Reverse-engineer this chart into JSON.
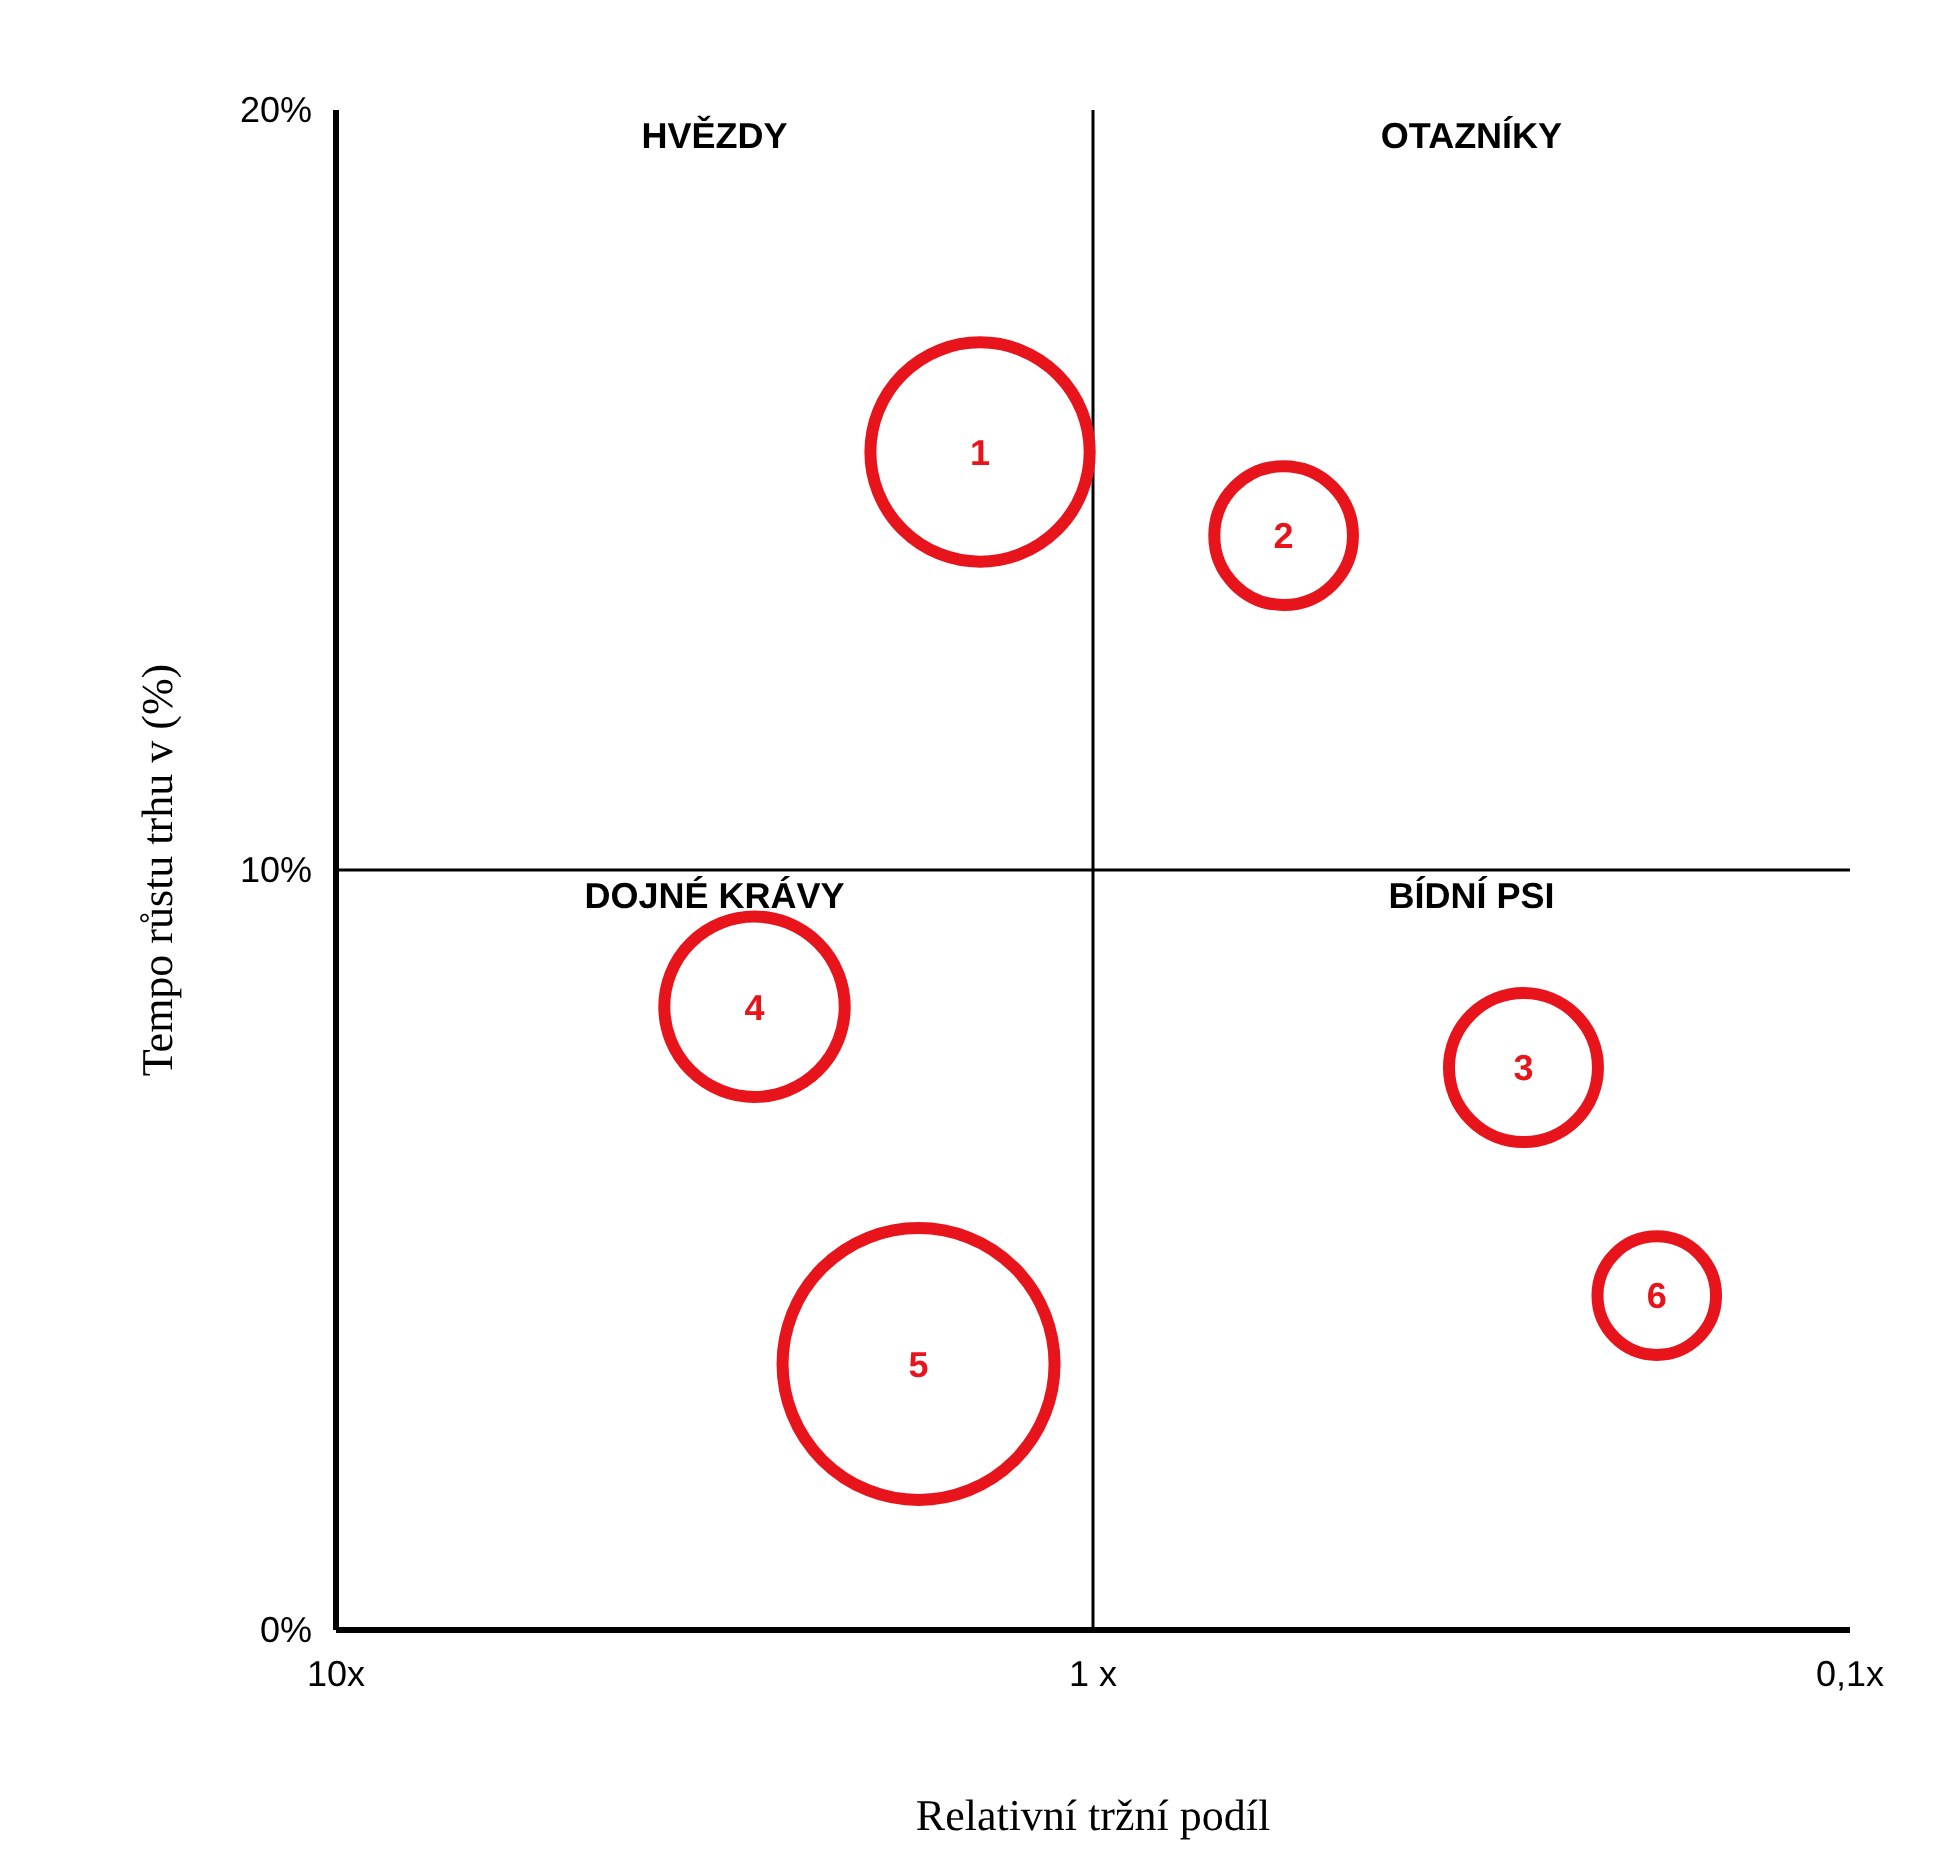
{
  "chart_data": {
    "type": "bubble",
    "xlabel": "Relativní tržní podíl",
    "ylabel": "Tempo růstu trhu v (%)",
    "x": [
      1.41,
      0.56,
      0.27,
      2.8,
      1.7,
      0.18
    ],
    "values": [
      15.5,
      14.4,
      7.4,
      8.2,
      3.5,
      4.4
    ],
    "sizes": [
      0.65,
      0.26,
      0.3,
      0.44,
      1,
      0.19
    ],
    "color": "#e8141b",
    "log": "x",
    "xlim": [
      10,
      0.1
    ],
    "xticks": [
      {
        "value": 10,
        "label": "10x"
      },
      {
        "value": 1,
        "label": "1 x"
      },
      {
        "value": 0.1,
        "label": "0,1x"
      }
    ],
    "ylim": [
      0,
      20
    ],
    "yticks": [
      {
        "value": 0,
        "label": "0%"
      },
      {
        "value": 10,
        "label": "10%"
      },
      {
        "value": 20,
        "label": "20%"
      }
    ],
    "ref_lines": [
      {
        "axis": "x",
        "value": 1,
        "color": "#000000"
      },
      {
        "axis": "y",
        "value": 10,
        "color": "#000000"
      }
    ],
    "annotations": [
      "HVĚZDY",
      "OTAZNÍKY",
      "DOJNÉ KRÁVY",
      "BÍDNÍ PSI",
      {
        "text": "1",
        "x": 1.41,
        "y": 15.5
      },
      {
        "text": "2",
        "x": 0.56,
        "y": 14.4
      },
      {
        "text": "3",
        "x": 0.27,
        "y": 7.4
      },
      {
        "text": "4",
        "x": 2.8,
        "y": 8.2
      },
      {
        "text": "5",
        "x": 1.7,
        "y": 3.5
      },
      {
        "text": "6",
        "x": 0.18,
        "y": 4.4
      }
    ]
  }
}
